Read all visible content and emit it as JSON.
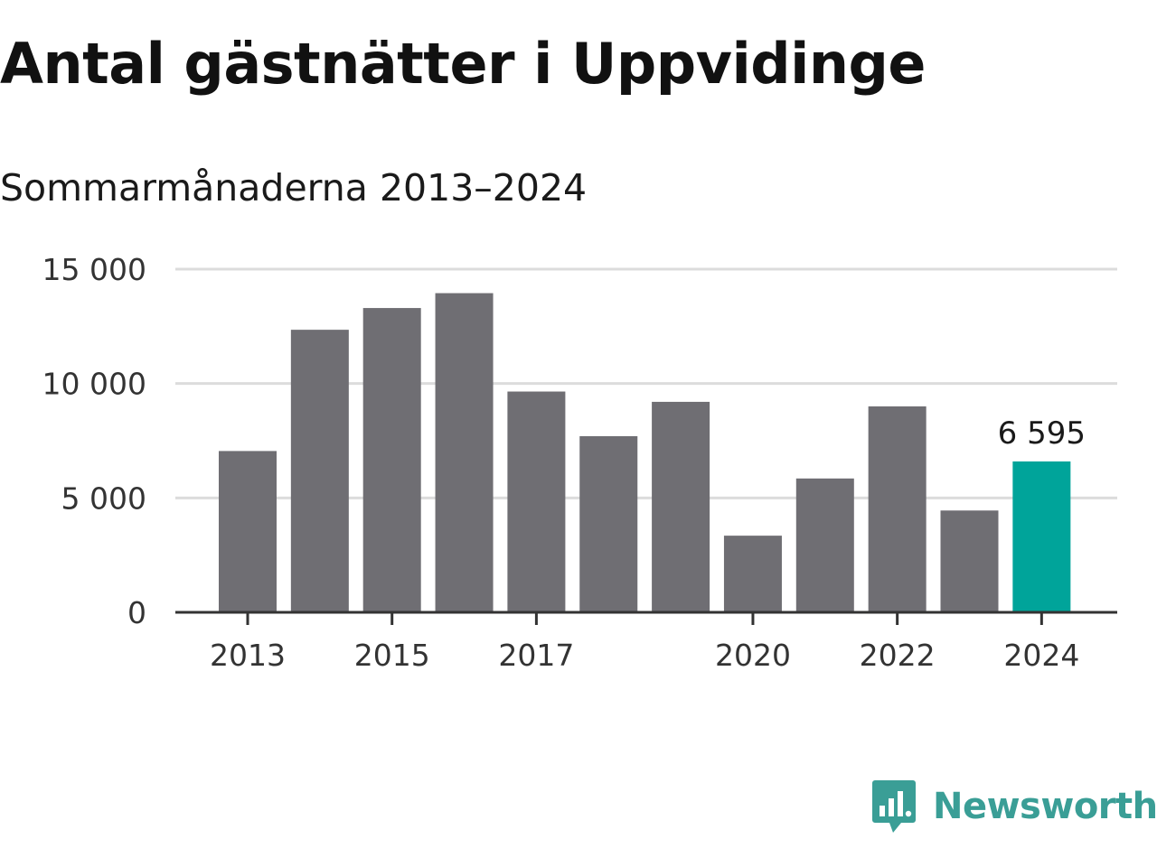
{
  "header": {
    "title": "Antal gästnätter i Uppvidinge",
    "subtitle": "Sommarmånaderna 2013–2024"
  },
  "colors": {
    "bar": "#6f6e73",
    "highlight": "#00a49a",
    "brand": "#3a9e96"
  },
  "brand": {
    "name": "Newsworthy",
    "icon": "newsworthy-logo-icon"
  },
  "chart_data": {
    "type": "bar",
    "title": "Antal gästnätter i Uppvidinge",
    "subtitle": "Sommarmånaderna 2013–2024",
    "xlabel": "",
    "ylabel": "",
    "categories": [
      "2013",
      "2014",
      "2015",
      "2016",
      "2017",
      "2018",
      "2019",
      "2020",
      "2021",
      "2022",
      "2023",
      "2024"
    ],
    "values": [
      7050,
      12350,
      13300,
      13950,
      9650,
      7700,
      9200,
      3350,
      5850,
      9000,
      4450,
      6595
    ],
    "highlight_index": 11,
    "ylim": [
      0,
      15000
    ],
    "yticks": [
      0,
      5000,
      10000,
      15000
    ],
    "ytick_labels": [
      "0",
      "5 000",
      "10 000",
      "15 000"
    ],
    "xtick_labels": [
      "2013",
      "2015",
      "2017",
      "2020",
      "2022",
      "2024"
    ],
    "xtick_years": [
      "2013",
      "2015",
      "2017",
      "2020",
      "2022",
      "2024"
    ],
    "data_labels": [
      {
        "category": "2024",
        "text": "6 595"
      }
    ],
    "grid": true,
    "legend": "none"
  }
}
